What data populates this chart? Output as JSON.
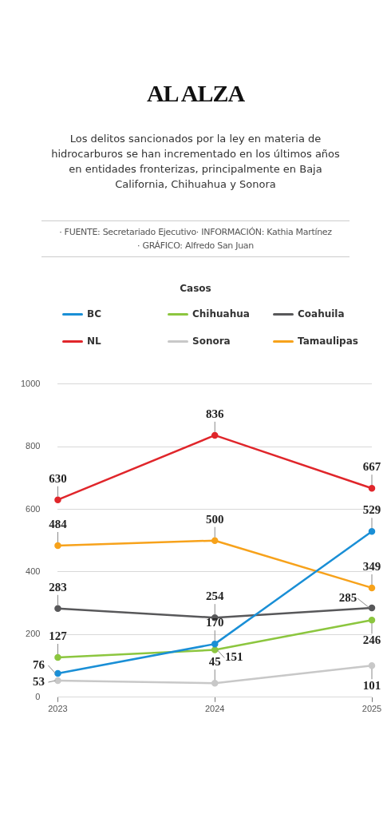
{
  "chart_data": {
    "type": "line",
    "title": "AL ALZA",
    "subtitle": "Los delitos sancionados por la ley en materia de hidrocarburos se han incrementado en los últimos años en entidades fronterizas, principalmente en Baja California, Chihuahua y Sonora",
    "annotations": [
      "· FUENTE: Secretariado Ejecutivo· INFORMACIÓN: Kathia Martínez",
      "· GRÁFICO: Alfredo San Juan"
    ],
    "legend_title": "Casos",
    "legend": "top",
    "categories": [
      "2023",
      "2024",
      "2025"
    ],
    "series": [
      {
        "name": "BC",
        "color": "#1a8fd6",
        "values": [
          76,
          170,
          529
        ]
      },
      {
        "name": "Chihuahua",
        "color": "#8cc63f",
        "values": [
          127,
          151,
          246
        ]
      },
      {
        "name": "Coahuila",
        "color": "#58585a",
        "values": [
          283,
          254,
          285
        ]
      },
      {
        "name": "NL",
        "color": "#e0262b",
        "values": [
          630,
          836,
          667
        ]
      },
      {
        "name": "Sonora",
        "color": "#c8c8c8",
        "values": [
          53,
          45,
          101
        ]
      },
      {
        "name": "Tamaulipas",
        "color": "#f7a21b",
        "values": [
          484,
          500,
          349
        ]
      }
    ],
    "ylim": [
      0,
      1000
    ],
    "yticks": [
      0,
      200,
      400,
      600,
      800,
      1000
    ],
    "grid": "y",
    "marker": "circle",
    "line_style": "solid",
    "data_labels": true
  }
}
